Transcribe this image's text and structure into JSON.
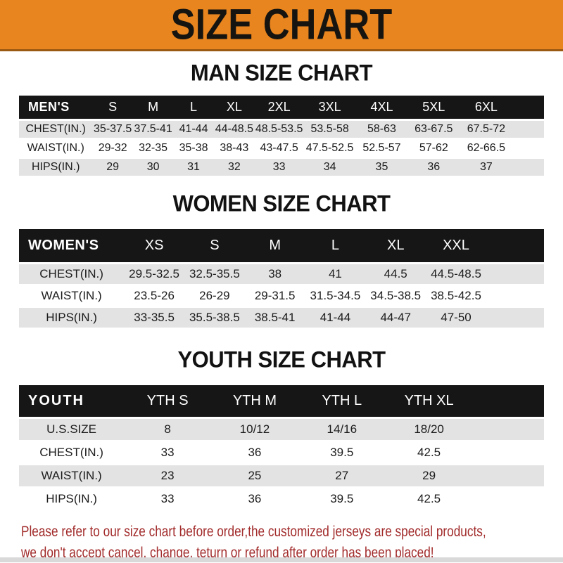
{
  "banner": {
    "title": "SIZE CHART",
    "bg_color": "#E8851F",
    "text_color": "#161410"
  },
  "sections": [
    {
      "heading": "MAN SIZE CHART",
      "header_label": "MEN'S",
      "columns": [
        "S",
        "M",
        "L",
        "XL",
        "2XL",
        "3XL",
        "4XL",
        "5XL",
        "6XL"
      ],
      "rows": [
        {
          "label": "CHEST(IN.)",
          "values": [
            "35-37.5",
            "37.5-41",
            "41-44",
            "44-48.5",
            "48.5-53.5",
            "53.5-58",
            "58-63",
            "63-67.5",
            "67.5-72"
          ]
        },
        {
          "label": "WAIST(IN.)",
          "values": [
            "29-32",
            "32-35",
            "35-38",
            "38-43",
            "43-47.5",
            "47.5-52.5",
            "52.5-57",
            "57-62",
            "62-66.5"
          ]
        },
        {
          "label": "HIPS(IN.)",
          "values": [
            "29",
            "30",
            "31",
            "32",
            "33",
            "34",
            "35",
            "36",
            "37"
          ]
        }
      ]
    },
    {
      "heading": "WOMEN SIZE CHART",
      "header_label": "WOMEN'S",
      "columns": [
        "XS",
        "S",
        "M",
        "L",
        "XL",
        "XXL"
      ],
      "rows": [
        {
          "label": "CHEST(IN.)",
          "values": [
            "29.5-32.5",
            "32.5-35.5",
            "38",
            "41",
            "44.5",
            "44.5-48.5"
          ]
        },
        {
          "label": "WAIST(IN.)",
          "values": [
            "23.5-26",
            "26-29",
            "29-31.5",
            "31.5-34.5",
            "34.5-38.5",
            "38.5-42.5"
          ]
        },
        {
          "label": "HIPS(IN.)",
          "values": [
            "33-35.5",
            "35.5-38.5",
            "38.5-41",
            "41-44",
            "44-47",
            "47-50"
          ]
        }
      ]
    },
    {
      "heading": "YOUTH SIZE CHART",
      "header_label": "YOUTH",
      "columns": [
        "YTH S",
        "YTH M",
        "YTH L",
        "YTH XL"
      ],
      "rows": [
        {
          "label": "U.S.SIZE",
          "values": [
            "8",
            "10/12",
            "14/16",
            "18/20"
          ]
        },
        {
          "label": "CHEST(IN.)",
          "values": [
            "33",
            "36",
            "39.5",
            "42.5"
          ]
        },
        {
          "label": "WAIST(IN.)",
          "values": [
            "23",
            "25",
            "27",
            "29"
          ]
        },
        {
          "label": "HIPS(IN.)",
          "values": [
            "33",
            "36",
            "39.5",
            "42.5"
          ]
        }
      ]
    }
  ],
  "footer": {
    "line1": "Please refer to our size chart before order,the customized jerseys are special products,",
    "line2": "we don't accept cancel, change, teturn or refund after order has been placed!",
    "text_color": "#A22B2B"
  },
  "colors": {
    "banner_orange": "#E8851F",
    "banner_border": "#9A5913",
    "header_bar_black": "#161616",
    "row_gray": "#E3E3E3",
    "row_white": "#FFFFFF",
    "warning_red": "#A22B2B",
    "bottom_strip_gray": "#D9D9D9"
  }
}
